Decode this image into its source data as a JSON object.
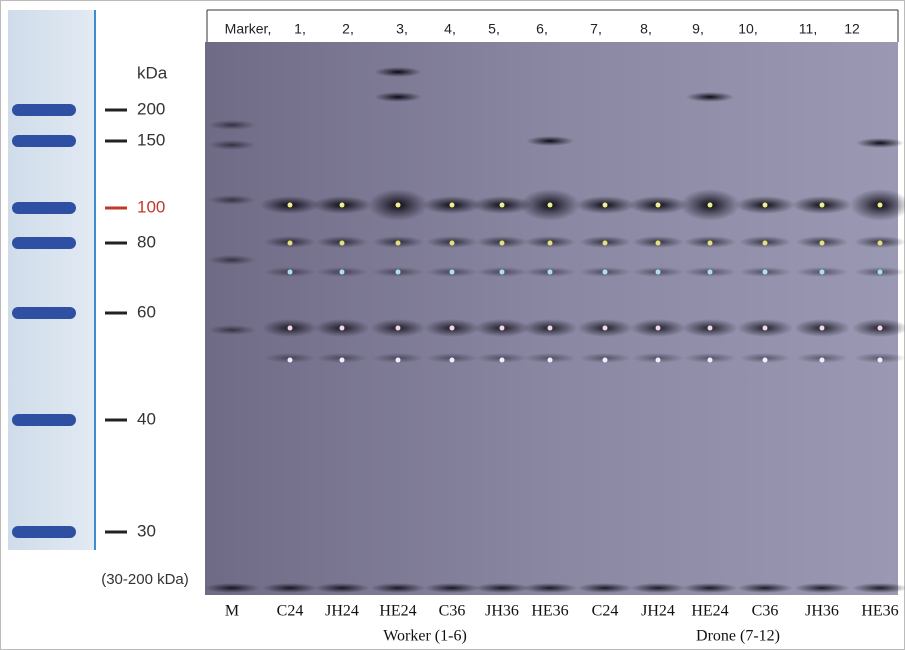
{
  "ladder": {
    "unit": "kDa",
    "labels": [
      "200",
      "150",
      "100",
      "80",
      "60",
      "40",
      "30"
    ],
    "range": "(30-200 kDa)"
  },
  "lane_headers": [
    "Marker,",
    "1,",
    "2,",
    "3,",
    "4,",
    "5,",
    "6,",
    "7,",
    "8,",
    "9,",
    "10,",
    "11,",
    "12"
  ],
  "lane_labels": [
    "M",
    "C24",
    "JH24",
    "HE24",
    "C36",
    "JH36",
    "HE36",
    "C24",
    "JH24",
    "HE24",
    "C36",
    "JH36",
    "HE36"
  ],
  "groups": [
    "Worker (1-6)",
    "Drone (7-12)"
  ]
}
